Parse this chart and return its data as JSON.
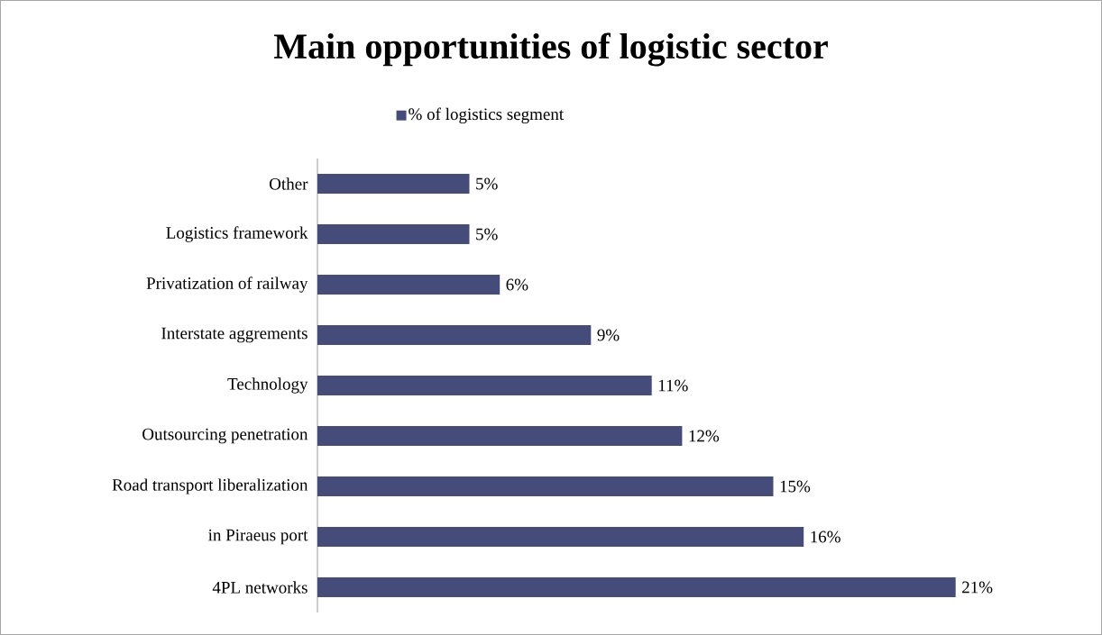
{
  "chart_data": {
    "type": "bar",
    "orientation": "horizontal",
    "title": "Main opportunities of logistic sector",
    "categories": [
      "Other",
      "Logistics framework",
      "Privatization of railway",
      "Interstate aggrements",
      "Technology",
      "Outsourcing penetration",
      "Road transport liberalization",
      "in Piraeus port",
      "4PL networks"
    ],
    "series": [
      {
        "name": "% of logistics segment",
        "color": "#464c7a",
        "values": [
          5,
          5,
          6,
          9,
          11,
          12,
          15,
          16,
          21
        ],
        "value_labels": [
          "5%",
          "5%",
          "6%",
          "9%",
          "11%",
          "12%",
          "15%",
          "16%",
          "21%"
        ]
      }
    ],
    "legend": "top"
  }
}
